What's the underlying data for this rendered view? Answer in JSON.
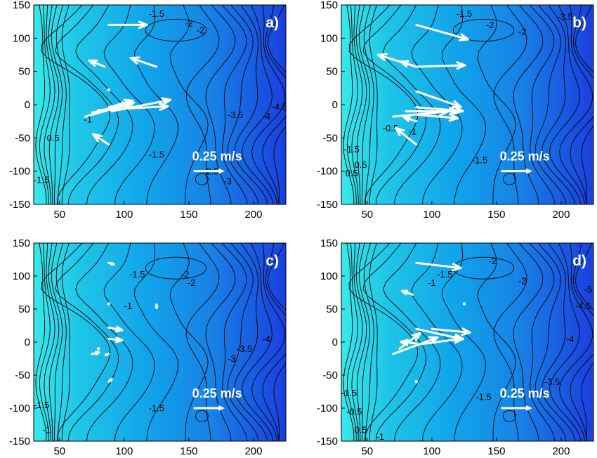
{
  "chart_data": {
    "type": "contour-quiver",
    "xlim": [
      30,
      225
    ],
    "ylim": [
      -150,
      150
    ],
    "xticks": [
      50,
      100,
      150,
      200
    ],
    "yticks": [
      -150,
      -100,
      -50,
      0,
      50,
      100,
      150
    ],
    "xlabel": "",
    "ylabel": "",
    "colors": {
      "west": "#33e6e6",
      "east": "#1a3fe0",
      "vector": "#ffffff",
      "contour": "#000000"
    },
    "panels": [
      {
        "label": "a)",
        "scale_label": "0.25 m/s",
        "contour_labels": [
          {
            "text": "-1.5",
            "x": 125,
            "y": 132
          },
          {
            "text": "-2",
            "x": 150,
            "y": 118
          },
          {
            "text": "-2",
            "x": 159,
            "y": 107
          },
          {
            "text": "-1",
            "x": 72,
            "y": -27
          },
          {
            "text": "0.5",
            "x": 45,
            "y": -55
          },
          {
            "text": "-1.5",
            "x": 125,
            "y": -80
          },
          {
            "text": "-1.5",
            "x": 36,
            "y": -118
          },
          {
            "text": "-2.5",
            "x": 167,
            "y": -105
          },
          {
            "text": "-3",
            "x": 180,
            "y": -120
          },
          {
            "text": "-3.5",
            "x": 186,
            "y": -20
          },
          {
            "text": "-4",
            "x": 210,
            "y": -22
          },
          {
            "text": "-4.5",
            "x": 220,
            "y": -8
          }
        ],
        "vectors": [
          {
            "x": 88,
            "y": 120,
            "u": 0.37,
            "v": 0.0
          },
          {
            "x": 85,
            "y": 57,
            "u": -0.15,
            "v": 0.12
          },
          {
            "x": 125,
            "y": 57,
            "u": -0.25,
            "v": 0.17
          },
          {
            "x": 88,
            "y": 22,
            "u": 0.0,
            "v": 0.0
          },
          {
            "x": 88,
            "y": -4,
            "u": 0.23,
            "v": 0.13
          },
          {
            "x": 80,
            "y": -8,
            "u": 0.67,
            "v": 0.07
          },
          {
            "x": 90,
            "y": -10,
            "u": 0.57,
            "v": 0.22
          },
          {
            "x": 75,
            "y": -12,
            "u": 0.37,
            "v": 0.17
          },
          {
            "x": 70,
            "y": -18,
            "u": 0.47,
            "v": 0.27
          },
          {
            "x": 88,
            "y": -60,
            "u": -0.15,
            "v": 0.2
          }
        ]
      },
      {
        "label": "b)",
        "scale_label": "0.25 m/s",
        "contour_labels": [
          {
            "text": "-1.5",
            "x": 125,
            "y": 132
          },
          {
            "text": "-2",
            "x": 145,
            "y": 115
          },
          {
            "text": "-2",
            "x": 170,
            "y": 105
          },
          {
            "text": "-3.5",
            "x": 203,
            "y": 128
          },
          {
            "text": "-0.5",
            "x": 68,
            "y": -40
          },
          {
            "text": "-1",
            "x": 85,
            "y": -45
          },
          {
            "text": "-1.5",
            "x": 137,
            "y": -88
          },
          {
            "text": "-1.5",
            "x": 38,
            "y": -72
          },
          {
            "text": "0.5",
            "x": 38,
            "y": -108
          },
          {
            "text": "0.5",
            "x": 45,
            "y": -95
          }
        ],
        "vectors": [
          {
            "x": 88,
            "y": 120,
            "u": 0.5,
            "v": -0.28
          },
          {
            "x": 88,
            "y": 57,
            "u": -0.37,
            "v": 0.23
          },
          {
            "x": 88,
            "y": 57,
            "u": 0.47,
            "v": 0.03
          },
          {
            "x": 88,
            "y": 57,
            "u": -0.15,
            "v": 0.1
          },
          {
            "x": 88,
            "y": 20,
            "u": 0.43,
            "v": -0.3
          },
          {
            "x": 88,
            "y": -4,
            "u": 0.45,
            "v": -0.07
          },
          {
            "x": 80,
            "y": -10,
            "u": 0.5,
            "v": 0.0
          },
          {
            "x": 70,
            "y": -18,
            "u": 0.53,
            "v": 0.1
          },
          {
            "x": 88,
            "y": -15,
            "u": 0.4,
            "v": -0.07
          },
          {
            "x": 88,
            "y": -60,
            "u": -0.2,
            "v": 0.32
          },
          {
            "x": 88,
            "y": -25,
            "u": -0.12,
            "v": 0.08
          }
        ]
      },
      {
        "label": "c)",
        "scale_label": "0.25 m/s",
        "contour_labels": [
          {
            "text": "-1.5",
            "x": 110,
            "y": 98
          },
          {
            "text": "-2",
            "x": 147,
            "y": 98
          },
          {
            "text": "-2",
            "x": 152,
            "y": 85
          },
          {
            "text": "-1",
            "x": 103,
            "y": 50
          },
          {
            "text": "-3",
            "x": 183,
            "y": -30
          },
          {
            "text": "-3.5",
            "x": 193,
            "y": -15
          },
          {
            "text": "-4",
            "x": 210,
            "y": 0
          },
          {
            "text": "-1.5",
            "x": 125,
            "y": -105
          },
          {
            "text": "-1.5",
            "x": 36,
            "y": -100
          },
          {
            "text": "-1",
            "x": 40,
            "y": -138
          }
        ],
        "vectors": [
          {
            "x": 88,
            "y": 120,
            "u": 0.05,
            "v": -0.03
          },
          {
            "x": 88,
            "y": 58,
            "u": 0.0,
            "v": 0.0
          },
          {
            "x": 125,
            "y": 57,
            "u": 0.0,
            "v": -0.07
          },
          {
            "x": 88,
            "y": 22,
            "u": 0.13,
            "v": -0.05
          },
          {
            "x": 88,
            "y": 5,
            "u": 0.13,
            "v": -0.03
          },
          {
            "x": 80,
            "y": -10,
            "u": 0.0,
            "v": 0.02
          },
          {
            "x": 75,
            "y": -18,
            "u": 0.07,
            "v": 0.03
          },
          {
            "x": 88,
            "y": -18,
            "u": -0.03,
            "v": -0.02
          },
          {
            "x": 88,
            "y": -60,
            "u": 0.03,
            "v": 0.05
          }
        ]
      },
      {
        "label": "d)",
        "scale_label": "0.25 m/s",
        "contour_labels": [
          {
            "text": "-1.5",
            "x": 110,
            "y": 98
          },
          {
            "text": "-2",
            "x": 147,
            "y": 118
          },
          {
            "text": "-2",
            "x": 170,
            "y": 88
          },
          {
            "text": "-1",
            "x": 100,
            "y": 85
          },
          {
            "text": "-4",
            "x": 207,
            "y": 0
          },
          {
            "text": "-4.5",
            "x": 217,
            "y": 50
          },
          {
            "text": "-5",
            "x": 221,
            "y": 75
          },
          {
            "text": "-3.5",
            "x": 193,
            "y": -65
          },
          {
            "text": "-1.5",
            "x": 140,
            "y": -88
          },
          {
            "text": "-1",
            "x": 60,
            "y": -148
          },
          {
            "text": "0.5",
            "x": 45,
            "y": -138
          },
          {
            "text": "-0.5",
            "x": 40,
            "y": -110
          },
          {
            "text": "-1.5",
            "x": 36,
            "y": -82
          }
        ],
        "vectors": [
          {
            "x": 88,
            "y": 120,
            "u": 0.43,
            "v": -0.1
          },
          {
            "x": 85,
            "y": 72,
            "u": -0.1,
            "v": 0.07
          },
          {
            "x": 125,
            "y": 58,
            "u": 0.0,
            "v": 0.0
          },
          {
            "x": 88,
            "y": -60,
            "u": 0.0,
            "v": 0.0
          },
          {
            "x": 88,
            "y": -4,
            "u": 0.45,
            "v": 0.12
          },
          {
            "x": 88,
            "y": 20,
            "u": 0.45,
            "v": -0.2
          },
          {
            "x": 70,
            "y": -18,
            "u": 0.43,
            "v": 0.32
          },
          {
            "x": 75,
            "y": -10,
            "u": 0.2,
            "v": 0.3
          },
          {
            "x": 88,
            "y": -2,
            "u": -0.15,
            "v": 0.03
          },
          {
            "x": 100,
            "y": 20,
            "u": 0.37,
            "v": -0.07
          }
        ]
      }
    ]
  }
}
